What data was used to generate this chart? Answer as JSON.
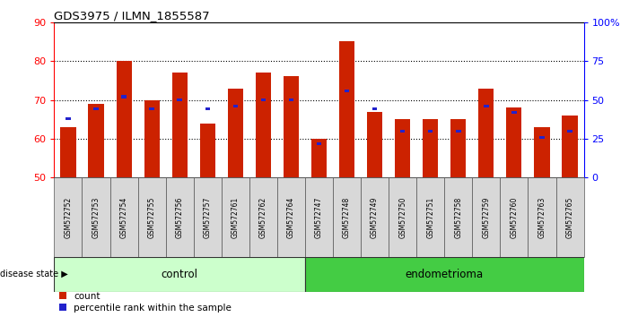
{
  "title": "GDS3975 / ILMN_1855587",
  "samples": [
    "GSM572752",
    "GSM572753",
    "GSM572754",
    "GSM572755",
    "GSM572756",
    "GSM572757",
    "GSM572761",
    "GSM572762",
    "GSM572764",
    "GSM572747",
    "GSM572748",
    "GSM572749",
    "GSM572750",
    "GSM572751",
    "GSM572758",
    "GSM572759",
    "GSM572760",
    "GSM572763",
    "GSM572765"
  ],
  "count_values": [
    63,
    69,
    80,
    70,
    77,
    64,
    73,
    77,
    76,
    60,
    85,
    67,
    65,
    65,
    65,
    73,
    68,
    63,
    66
  ],
  "percentile_values": [
    38,
    44,
    52,
    44,
    50,
    44,
    46,
    50,
    50,
    22,
    56,
    44,
    30,
    30,
    30,
    46,
    42,
    26,
    30
  ],
  "bar_bottom": 50,
  "ylim_left": [
    50,
    90
  ],
  "ylim_right": [
    0,
    100
  ],
  "yticks_left": [
    50,
    60,
    70,
    80,
    90
  ],
  "yticks_right": [
    0,
    25,
    50,
    75,
    100
  ],
  "ytick_labels_right": [
    "0",
    "25",
    "50",
    "75",
    "100%"
  ],
  "bar_color": "#cc2200",
  "percentile_color": "#2222cc",
  "control_color": "#ccffcc",
  "endometrioma_color": "#44cc44",
  "n_control": 9,
  "n_endometrioma": 10,
  "background_color": "#ffffff",
  "bar_width": 0.55
}
